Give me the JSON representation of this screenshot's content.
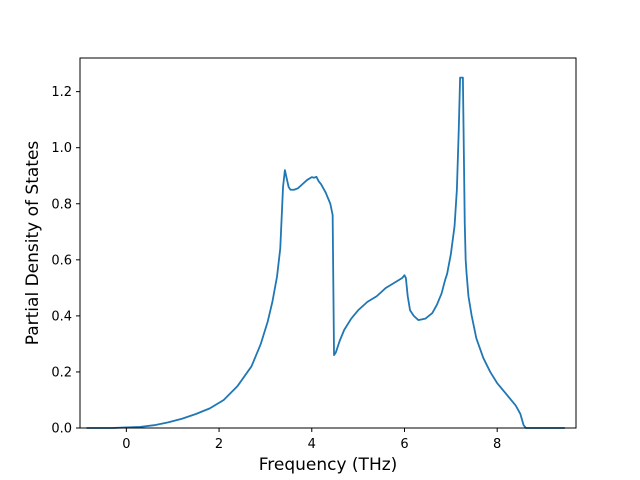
{
  "chart_data": {
    "type": "line",
    "title": "",
    "xlabel": "Frequency (THz)",
    "ylabel": "Partial Density of States",
    "xlim": [
      -1.0,
      9.7
    ],
    "ylim": [
      0.0,
      1.32
    ],
    "xticks": [
      0,
      2,
      4,
      6,
      8
    ],
    "yticks": [
      0.0,
      0.2,
      0.4,
      0.6,
      0.8,
      1.0,
      1.2
    ],
    "xtick_labels": [
      "0",
      "2",
      "4",
      "6",
      "8"
    ],
    "ytick_labels": [
      "0.0",
      "0.2",
      "0.4",
      "0.6",
      "0.8",
      "1.0",
      "1.2"
    ],
    "grid": false,
    "legend": "none",
    "series": [
      {
        "color": "#1f77b4",
        "x": [
          -0.85,
          -0.3,
          0.0,
          0.3,
          0.6,
          0.9,
          1.2,
          1.5,
          1.8,
          2.1,
          2.4,
          2.7,
          2.9,
          3.05,
          3.15,
          3.25,
          3.32,
          3.38,
          3.42,
          3.46,
          3.5,
          3.54,
          3.58,
          3.62,
          3.7,
          3.8,
          3.9,
          4.0,
          4.05,
          4.1,
          4.15,
          4.2,
          4.3,
          4.4,
          4.45,
          4.48,
          4.52,
          4.6,
          4.7,
          4.85,
          5.0,
          5.2,
          5.4,
          5.6,
          5.8,
          5.95,
          6.0,
          6.03,
          6.07,
          6.12,
          6.2,
          6.3,
          6.45,
          6.6,
          6.7,
          6.8,
          6.88,
          6.92,
          7.0,
          7.08,
          7.13,
          7.17,
          7.2,
          7.22,
          7.24,
          7.26,
          7.3,
          7.32,
          7.34,
          7.38,
          7.45,
          7.55,
          7.7,
          7.85,
          8.0,
          8.2,
          8.4,
          8.5,
          8.57,
          8.62,
          8.7,
          9.0,
          9.45
        ],
        "y": [
          0.0,
          0.0,
          0.002,
          0.004,
          0.01,
          0.02,
          0.033,
          0.05,
          0.07,
          0.1,
          0.15,
          0.22,
          0.3,
          0.38,
          0.45,
          0.54,
          0.64,
          0.86,
          0.92,
          0.89,
          0.86,
          0.85,
          0.85,
          0.85,
          0.855,
          0.87,
          0.885,
          0.895,
          0.893,
          0.896,
          0.88,
          0.87,
          0.84,
          0.8,
          0.76,
          0.26,
          0.27,
          0.31,
          0.35,
          0.39,
          0.42,
          0.45,
          0.47,
          0.5,
          0.52,
          0.535,
          0.545,
          0.535,
          0.47,
          0.42,
          0.4,
          0.385,
          0.39,
          0.41,
          0.44,
          0.48,
          0.53,
          0.55,
          0.62,
          0.72,
          0.85,
          1.06,
          1.25,
          1.25,
          1.25,
          1.25,
          0.73,
          0.6,
          0.55,
          0.47,
          0.4,
          0.32,
          0.25,
          0.2,
          0.16,
          0.12,
          0.08,
          0.05,
          0.01,
          0.0,
          0.0,
          0.0,
          0.0
        ]
      }
    ]
  }
}
